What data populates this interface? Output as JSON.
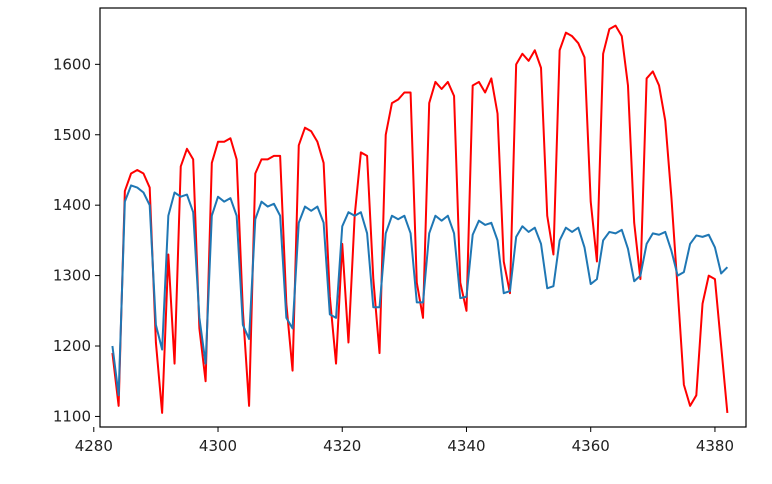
{
  "chart_data": {
    "type": "line",
    "title": "",
    "xlabel": "",
    "ylabel": "",
    "xlim": [
      4281,
      4385
    ],
    "ylim": [
      1085,
      1680
    ],
    "xticks": [
      4280,
      4300,
      4320,
      4340,
      4360,
      4380
    ],
    "yticks": [
      1100,
      1200,
      1300,
      1400,
      1500,
      1600
    ],
    "xtick_labels": [
      "4280",
      "4300",
      "4320",
      "4340",
      "4360",
      "4380"
    ],
    "ytick_labels": [
      "1100",
      "1200",
      "1300",
      "1400",
      "1500",
      "1600"
    ],
    "grid": false,
    "legend": "none",
    "series": [
      {
        "color": "#ff0000",
        "x": [
          4283,
          4284,
          4285,
          4286,
          4287,
          4288,
          4289,
          4290,
          4291,
          4292,
          4293,
          4294,
          4295,
          4296,
          4297,
          4298,
          4299,
          4300,
          4301,
          4302,
          4303,
          4304,
          4305,
          4306,
          4307,
          4308,
          4309,
          4310,
          4311,
          4312,
          4313,
          4314,
          4315,
          4316,
          4317,
          4318,
          4319,
          4320,
          4321,
          4322,
          4323,
          4324,
          4325,
          4326,
          4327,
          4328,
          4329,
          4330,
          4331,
          4332,
          4333,
          4334,
          4335,
          4336,
          4337,
          4338,
          4339,
          4340,
          4341,
          4342,
          4343,
          4344,
          4345,
          4346,
          4347,
          4348,
          4349,
          4350,
          4351,
          4352,
          4353,
          4354,
          4355,
          4356,
          4357,
          4358,
          4359,
          4360,
          4361,
          4362,
          4363,
          4364,
          4365,
          4366,
          4367,
          4368,
          4369,
          4370,
          4371,
          4372,
          4373,
          4374,
          4375,
          4376,
          4377,
          4378,
          4379,
          4380,
          4381,
          4382
        ],
        "y": [
          1190,
          1115,
          1420,
          1445,
          1450,
          1445,
          1425,
          1205,
          1105,
          1330,
          1175,
          1455,
          1480,
          1465,
          1225,
          1150,
          1460,
          1490,
          1490,
          1495,
          1465,
          1250,
          1115,
          1445,
          1465,
          1465,
          1470,
          1470,
          1260,
          1165,
          1485,
          1510,
          1505,
          1490,
          1460,
          1270,
          1175,
          1345,
          1205,
          1385,
          1475,
          1470,
          1295,
          1190,
          1500,
          1545,
          1550,
          1560,
          1560,
          1290,
          1240,
          1545,
          1575,
          1565,
          1575,
          1555,
          1290,
          1250,
          1570,
          1575,
          1560,
          1580,
          1530,
          1320,
          1275,
          1600,
          1615,
          1605,
          1620,
          1595,
          1385,
          1330,
          1620,
          1645,
          1640,
          1630,
          1610,
          1405,
          1320,
          1615,
          1650,
          1655,
          1640,
          1570,
          1375,
          1295,
          1580,
          1590,
          1570,
          1520,
          1410,
          1280,
          1145,
          1115,
          1130,
          1260,
          1300,
          1295,
          1200,
          1105
        ]
      },
      {
        "color": "#1f77b4",
        "x": [
          4283,
          4284,
          4285,
          4286,
          4287,
          4288,
          4289,
          4290,
          4291,
          4292,
          4293,
          4294,
          4295,
          4296,
          4297,
          4298,
          4299,
          4300,
          4301,
          4302,
          4303,
          4304,
          4305,
          4306,
          4307,
          4308,
          4309,
          4310,
          4311,
          4312,
          4313,
          4314,
          4315,
          4316,
          4317,
          4318,
          4319,
          4320,
          4321,
          4322,
          4323,
          4324,
          4325,
          4326,
          4327,
          4328,
          4329,
          4330,
          4331,
          4332,
          4333,
          4334,
          4335,
          4336,
          4337,
          4338,
          4339,
          4340,
          4341,
          4342,
          4343,
          4344,
          4345,
          4346,
          4347,
          4348,
          4349,
          4350,
          4351,
          4352,
          4353,
          4354,
          4355,
          4356,
          4357,
          4358,
          4359,
          4360,
          4361,
          4362,
          4363,
          4364,
          4365,
          4366,
          4367,
          4368,
          4369,
          4370,
          4371,
          4372,
          4373,
          4374,
          4375,
          4376,
          4377,
          4378,
          4379,
          4380,
          4381,
          4382
        ],
        "y": [
          1200,
          1130,
          1405,
          1428,
          1425,
          1418,
          1400,
          1230,
          1195,
          1385,
          1418,
          1412,
          1415,
          1390,
          1240,
          1175,
          1385,
          1412,
          1405,
          1410,
          1385,
          1230,
          1210,
          1380,
          1405,
          1398,
          1402,
          1385,
          1240,
          1225,
          1375,
          1398,
          1392,
          1398,
          1375,
          1245,
          1240,
          1370,
          1390,
          1385,
          1390,
          1360,
          1255,
          1255,
          1360,
          1385,
          1380,
          1385,
          1360,
          1262,
          1262,
          1360,
          1385,
          1378,
          1385,
          1360,
          1268,
          1270,
          1358,
          1378,
          1372,
          1375,
          1350,
          1275,
          1278,
          1355,
          1370,
          1362,
          1368,
          1345,
          1282,
          1285,
          1350,
          1368,
          1362,
          1368,
          1340,
          1288,
          1295,
          1350,
          1362,
          1360,
          1365,
          1338,
          1292,
          1300,
          1345,
          1360,
          1358,
          1362,
          1335,
          1300,
          1305,
          1345,
          1357,
          1355,
          1358,
          1340,
          1303,
          1312
        ]
      }
    ]
  }
}
